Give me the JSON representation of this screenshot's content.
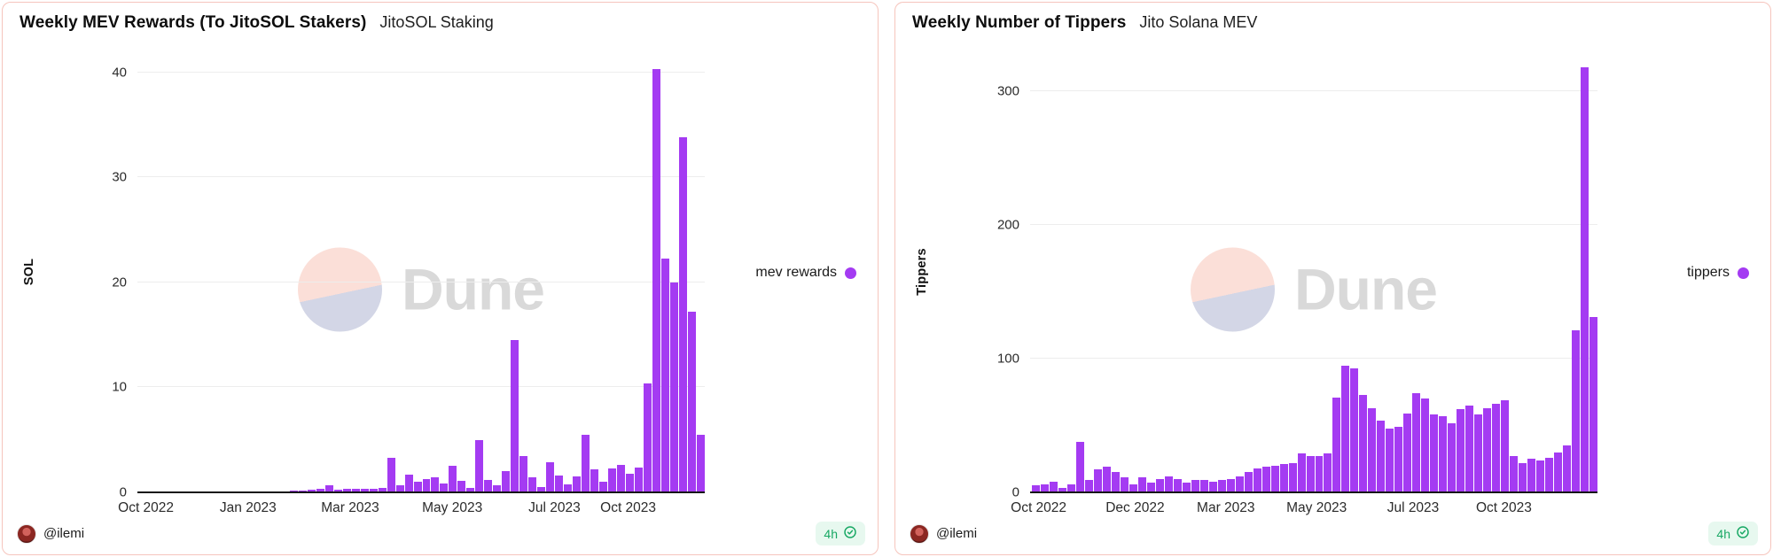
{
  "theme": {
    "bar_color": "#a43bf2",
    "panel_border": "#f6c5bd",
    "grid_color": "#ededed",
    "axis_line_color": "#161616",
    "badge_bg": "#e7f8ef",
    "badge_green": "#18a864",
    "watermark_top_color": "#fbdfd8",
    "watermark_bottom_color": "#d3d6e6",
    "watermark_text_color": "#d9d9d9"
  },
  "watermark_text": "Dune",
  "chart_data": [
    {
      "type": "bar",
      "title": "Weekly MEV Rewards (To JitoSOL Stakers)",
      "subtitle": "JitoSOL Staking",
      "ylabel": "SOL",
      "x_unit": "week",
      "x_range": [
        "Oct 2022",
        "Dec 2023"
      ],
      "ylim": [
        0,
        42
      ],
      "yticks": [
        0,
        10,
        20,
        30,
        40
      ],
      "grid": true,
      "legend_position": "right",
      "xticks": [
        {
          "label": "Oct 2022",
          "pos": 0.015
        },
        {
          "label": "Jan 2023",
          "pos": 0.195
        },
        {
          "label": "Mar 2023",
          "pos": 0.375
        },
        {
          "label": "May 2023",
          "pos": 0.555
        },
        {
          "label": "Jul 2023",
          "pos": 0.735
        },
        {
          "label": "Oct 2023",
          "pos": 0.865
        }
      ],
      "series": [
        {
          "name": "mev rewards",
          "color": "#a43bf2",
          "values": [
            0.02,
            0.02,
            0.02,
            0.03,
            0.03,
            0.03,
            0.04,
            0.04,
            0.05,
            0.05,
            0.06,
            0.07,
            0.08,
            0.09,
            0.1,
            0.1,
            0.12,
            0.15,
            0.2,
            0.25,
            0.3,
            0.7,
            0.25,
            0.3,
            0.3,
            0.35,
            0.3,
            0.4,
            3.3,
            0.7,
            1.7,
            1.0,
            1.25,
            1.4,
            0.85,
            2.5,
            1.1,
            0.4,
            5.0,
            1.2,
            0.7,
            2.0,
            14.5,
            3.5,
            1.4,
            0.5,
            2.9,
            1.6,
            0.8,
            1.5,
            5.5,
            2.2,
            1.0,
            2.3,
            2.6,
            1.8,
            2.4,
            10.4,
            40.3,
            22.3,
            20.0,
            33.8,
            17.2,
            5.5
          ]
        }
      ]
    },
    {
      "type": "bar",
      "title": "Weekly Number of Tippers",
      "subtitle": "Jito Solana MEV",
      "ylabel": "Tippers",
      "x_unit": "week",
      "x_range": [
        "Oct 2022",
        "Dec 2023"
      ],
      "ylim": [
        0,
        330
      ],
      "yticks": [
        0,
        100,
        200,
        300
      ],
      "grid": true,
      "legend_position": "right",
      "xticks": [
        {
          "label": "Oct 2022",
          "pos": 0.015
        },
        {
          "label": "Dec 2022",
          "pos": 0.185
        },
        {
          "label": "Mar 2023",
          "pos": 0.345
        },
        {
          "label": "May 2023",
          "pos": 0.505
        },
        {
          "label": "Jul 2023",
          "pos": 0.675
        },
        {
          "label": "Oct 2023",
          "pos": 0.835
        }
      ],
      "series": [
        {
          "name": "tippers",
          "color": "#a43bf2",
          "values": [
            5,
            6,
            8,
            3,
            6,
            38,
            9,
            17,
            19,
            15,
            11,
            6,
            11,
            7,
            10,
            12,
            10,
            7,
            9,
            9,
            8,
            9,
            10,
            12,
            15,
            18,
            19,
            20,
            21,
            22,
            29,
            27,
            27,
            29,
            71,
            95,
            93,
            73,
            63,
            54,
            48,
            49,
            59,
            74,
            70,
            58,
            57,
            52,
            62,
            65,
            58,
            63,
            66,
            69,
            27,
            22,
            25,
            24,
            26,
            30,
            35,
            121,
            318,
            131
          ]
        }
      ]
    }
  ],
  "panels": [
    {
      "footer": {
        "handle": "@ilemi",
        "badge_label": "4h",
        "avatar_icon": "ladybug-avatar",
        "badge_icon": "verified-check"
      }
    },
    {
      "footer": {
        "handle": "@ilemi",
        "badge_label": "4h",
        "avatar_icon": "ladybug-avatar",
        "badge_icon": "verified-check"
      }
    }
  ]
}
